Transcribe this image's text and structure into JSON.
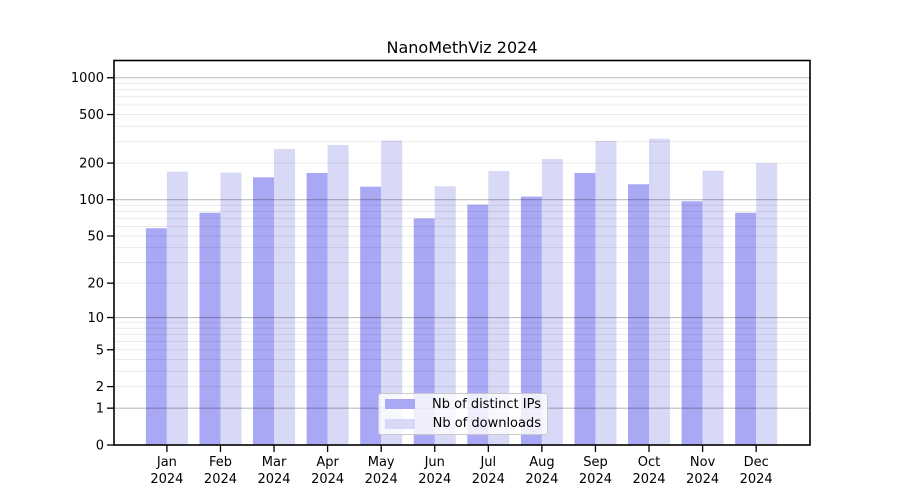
{
  "title": "NanoMethViz 2024",
  "chart_data": {
    "type": "bar",
    "title": "NanoMethViz 2024",
    "categories": [
      "Jan",
      "Feb",
      "Mar",
      "Apr",
      "May",
      "Jun",
      "Jul",
      "Aug",
      "Sep",
      "Oct",
      "Nov",
      "Dec"
    ],
    "year_label": "2024",
    "series": [
      {
        "name": "Nb of distinct IPs",
        "color": "#a8a8f5",
        "values": [
          58,
          78,
          153,
          166,
          128,
          70,
          91,
          106,
          166,
          134,
          97,
          78
        ]
      },
      {
        "name": "Nb of downloads",
        "color": "#d8d8f7",
        "values": [
          170,
          167,
          261,
          281,
          306,
          129,
          172,
          216,
          304,
          317,
          173,
          200
        ]
      }
    ],
    "yscale": "log1p",
    "y_ticks": [
      0,
      1,
      2,
      5,
      10,
      20,
      50,
      100,
      200,
      500,
      1000
    ],
    "ylim": [
      0,
      1385
    ],
    "grid": true,
    "legend_position": "lower-center",
    "colors": {
      "major_grid": "rgba(0,0,0,0.26)",
      "minor_grid": "rgba(0,0,0,0.08)",
      "spine": "#000000",
      "tick_label": "#000000"
    }
  }
}
